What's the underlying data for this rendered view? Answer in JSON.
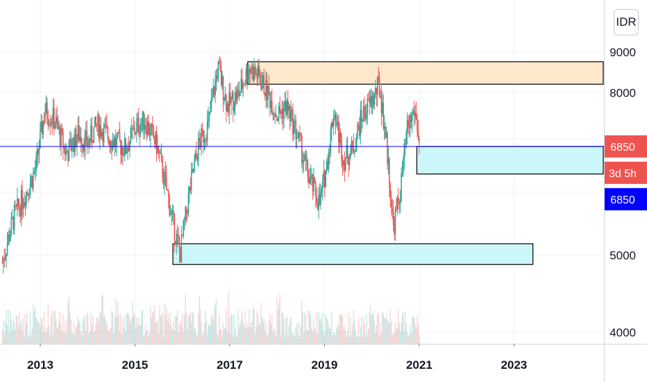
{
  "currency_button": {
    "label": "IDR"
  },
  "chart_data": {
    "type": "candlestick",
    "x_range": [
      2012.15,
      2024.9
    ],
    "y_range": [
      3950,
      9750
    ],
    "y_ticks": [
      4000,
      5000,
      8000,
      9000
    ],
    "y_tick_labels": [
      "4000",
      "5000",
      "8000",
      "9000"
    ],
    "x_ticks": [
      2013,
      2015,
      2017,
      2019,
      2021,
      2023
    ],
    "x_tick_labels": [
      "2013",
      "2015",
      "2017",
      "2019",
      "2021",
      "2023"
    ],
    "grid": true,
    "up_color": "#26a69a",
    "down_color": "#ef5350",
    "price_path": [
      [
        2012.2,
        4900
      ],
      [
        2012.45,
        5600
      ],
      [
        2012.7,
        6000
      ],
      [
        2012.9,
        6400
      ],
      [
        2013.1,
        7600
      ],
      [
        2013.3,
        7400
      ],
      [
        2013.55,
        6700
      ],
      [
        2013.8,
        7100
      ],
      [
        2014.0,
        6900
      ],
      [
        2014.2,
        7300
      ],
      [
        2014.5,
        7000
      ],
      [
        2014.8,
        6800
      ],
      [
        2015.0,
        7200
      ],
      [
        2015.2,
        7400
      ],
      [
        2015.45,
        6900
      ],
      [
        2015.6,
        6300
      ],
      [
        2015.8,
        5500
      ],
      [
        2015.95,
        5000
      ],
      [
        2016.15,
        6000
      ],
      [
        2016.35,
        6900
      ],
      [
        2016.55,
        7300
      ],
      [
        2016.75,
        8600
      ],
      [
        2016.95,
        7700
      ],
      [
        2017.2,
        8000
      ],
      [
        2017.4,
        8600
      ],
      [
        2017.6,
        8400
      ],
      [
        2017.8,
        8000
      ],
      [
        2018.0,
        7500
      ],
      [
        2018.2,
        7700
      ],
      [
        2018.45,
        7000
      ],
      [
        2018.65,
        6300
      ],
      [
        2018.9,
        5800
      ],
      [
        2019.05,
        6500
      ],
      [
        2019.2,
        7600
      ],
      [
        2019.4,
        6600
      ],
      [
        2019.6,
        6800
      ],
      [
        2019.8,
        7500
      ],
      [
        2020.05,
        7900
      ],
      [
        2020.15,
        8200
      ],
      [
        2020.3,
        7000
      ],
      [
        2020.45,
        5400
      ],
      [
        2020.6,
        6000
      ],
      [
        2020.75,
        7200
      ],
      [
        2020.9,
        7600
      ],
      [
        2020.97,
        7200
      ],
      [
        2021.0,
        6850
      ]
    ],
    "current_price": 6850,
    "zones": [
      {
        "name": "supply-zone",
        "x_start": 2017.38,
        "x_end": 2024.9,
        "y_low": 8200,
        "y_high": 8750,
        "fill": "#fde8cc"
      },
      {
        "name": "demand-zone-upper",
        "x_start": 2020.95,
        "x_end": 2024.9,
        "y_low": 6325,
        "y_high": 6850,
        "fill": "#ccf7fa"
      },
      {
        "name": "demand-zone-lower",
        "x_start": 2015.8,
        "x_end": 2023.4,
        "y_low": 4870,
        "y_high": 5170,
        "fill": "#ccf7fa"
      }
    ],
    "price_badges": [
      {
        "label": "6850",
        "color": "#ef5350"
      },
      {
        "label": "3d 5h",
        "color": "#ef5350"
      },
      {
        "label": "6850",
        "color": "#0000ff"
      }
    ]
  }
}
